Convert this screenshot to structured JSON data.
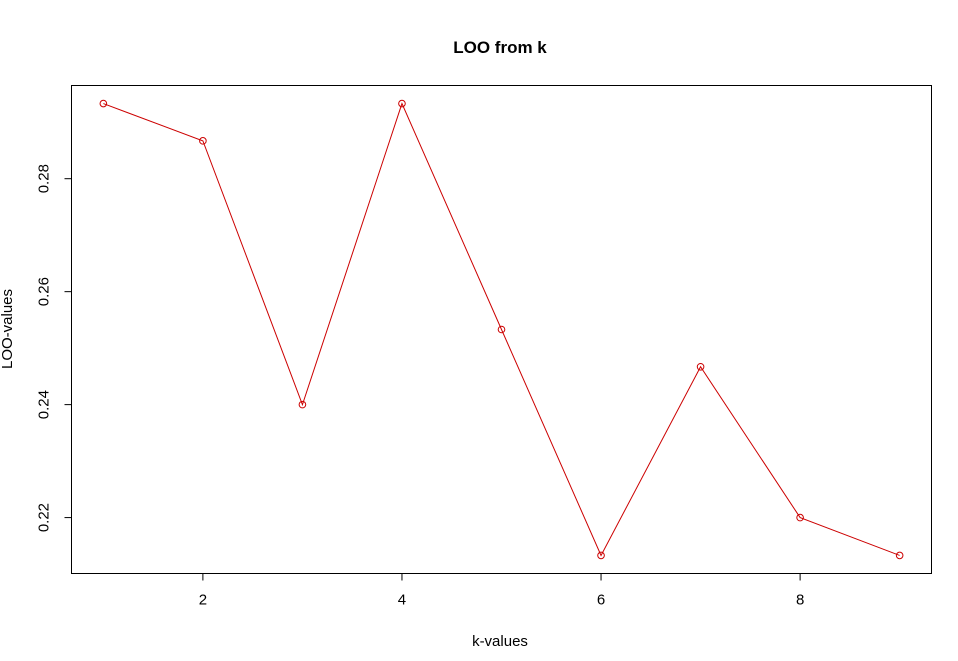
{
  "chart_data": {
    "type": "line",
    "title": "LOO from k",
    "xlabel": "k-values",
    "ylabel": "LOO-values",
    "x": [
      1,
      2,
      3,
      4,
      5,
      6,
      7,
      8,
      9
    ],
    "series": [
      {
        "values": [
          0.2933,
          0.2867,
          0.24,
          0.2933,
          0.2533,
          0.2133,
          0.2467,
          0.22,
          0.2133
        ],
        "color": "#cc0000"
      }
    ],
    "xlim": [
      0.68,
      9.32
    ],
    "ylim": [
      0.2101,
      0.2965
    ],
    "xticks": [
      2,
      4,
      6,
      8
    ],
    "yticks": [
      0.22,
      0.24,
      0.26,
      0.28
    ],
    "xtick_labels": [
      "2",
      "4",
      "6",
      "8"
    ],
    "ytick_labels": [
      "0.22",
      "0.24",
      "0.26",
      "0.28"
    ],
    "grid": false,
    "legend": "none"
  }
}
